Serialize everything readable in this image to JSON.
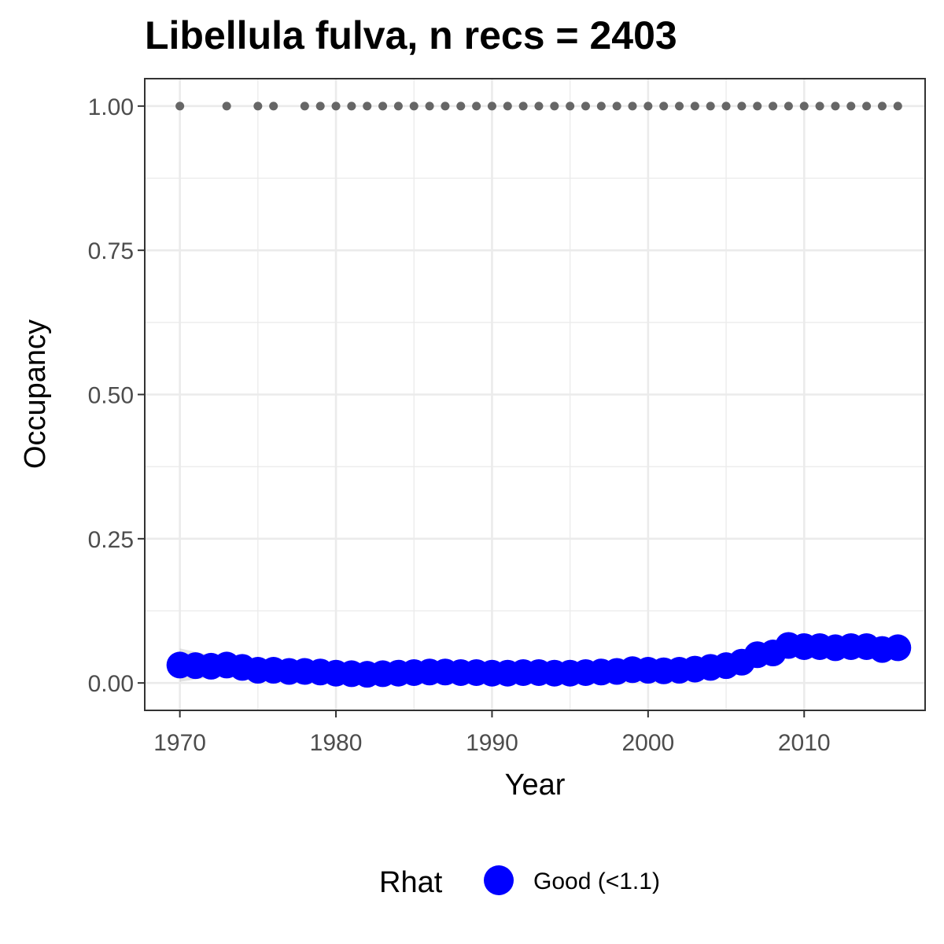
{
  "chart_data": {
    "type": "scatter",
    "title": "Libellula fulva, n recs = 2403",
    "xlabel": "Year",
    "ylabel": "Occupancy",
    "xlim": [
      1967.75,
      2017.75
    ],
    "ylim": [
      -0.0475,
      1.0475
    ],
    "x_ticks": [
      1970,
      1980,
      1990,
      2000,
      2010
    ],
    "x_tick_labels": [
      "1970",
      "1980",
      "1990",
      "2000",
      "2010"
    ],
    "y_ticks": [
      0,
      0.25,
      0.5,
      0.75,
      1.0
    ],
    "y_tick_labels": [
      "0.00",
      "0.25",
      "0.50",
      "0.75",
      "1.00"
    ],
    "grid": true,
    "legend": {
      "title": "Rhat",
      "position": "bottom",
      "entries": [
        {
          "label": "Good (<1.1)",
          "color": "#0000ff"
        }
      ]
    },
    "series": [
      {
        "name": "Good (<1.1)",
        "color": "#0000ff",
        "x": [
          1970,
          1971,
          1972,
          1973,
          1974,
          1975,
          1976,
          1977,
          1978,
          1979,
          1980,
          1981,
          1982,
          1983,
          1984,
          1985,
          1986,
          1987,
          1988,
          1989,
          1990,
          1991,
          1992,
          1993,
          1994,
          1995,
          1996,
          1997,
          1998,
          1999,
          2000,
          2001,
          2002,
          2003,
          2004,
          2005,
          2006,
          2007,
          2008,
          2009,
          2010,
          2011,
          2012,
          2013,
          2014,
          2015,
          2016
        ],
        "y": [
          0.031,
          0.03,
          0.029,
          0.031,
          0.027,
          0.022,
          0.022,
          0.02,
          0.02,
          0.019,
          0.017,
          0.016,
          0.015,
          0.016,
          0.017,
          0.018,
          0.019,
          0.019,
          0.018,
          0.018,
          0.017,
          0.017,
          0.018,
          0.018,
          0.017,
          0.017,
          0.018,
          0.019,
          0.02,
          0.023,
          0.022,
          0.021,
          0.022,
          0.024,
          0.027,
          0.03,
          0.036,
          0.049,
          0.052,
          0.065,
          0.063,
          0.063,
          0.061,
          0.063,
          0.063,
          0.058,
          0.061
        ]
      },
      {
        "name": "",
        "color": "#666666",
        "x": [
          1970,
          1973,
          1975,
          1976,
          1978,
          1979,
          1980,
          1981,
          1982,
          1983,
          1984,
          1985,
          1986,
          1987,
          1988,
          1989,
          1990,
          1991,
          1992,
          1993,
          1994,
          1995,
          1996,
          1997,
          1998,
          1999,
          2000,
          2001,
          2002,
          2003,
          2004,
          2005,
          2006,
          2007,
          2008,
          2009,
          2010,
          2011,
          2012,
          2013,
          2014,
          2015,
          2016
        ],
        "y": [
          1,
          1,
          1,
          1,
          1,
          1,
          1,
          1,
          1,
          1,
          1,
          1,
          1,
          1,
          1,
          1,
          1,
          1,
          1,
          1,
          1,
          1,
          1,
          1,
          1,
          1,
          1,
          1,
          1,
          1,
          1,
          1,
          1,
          1,
          1,
          1,
          1,
          1,
          1,
          1,
          1,
          1,
          1
        ]
      }
    ]
  }
}
